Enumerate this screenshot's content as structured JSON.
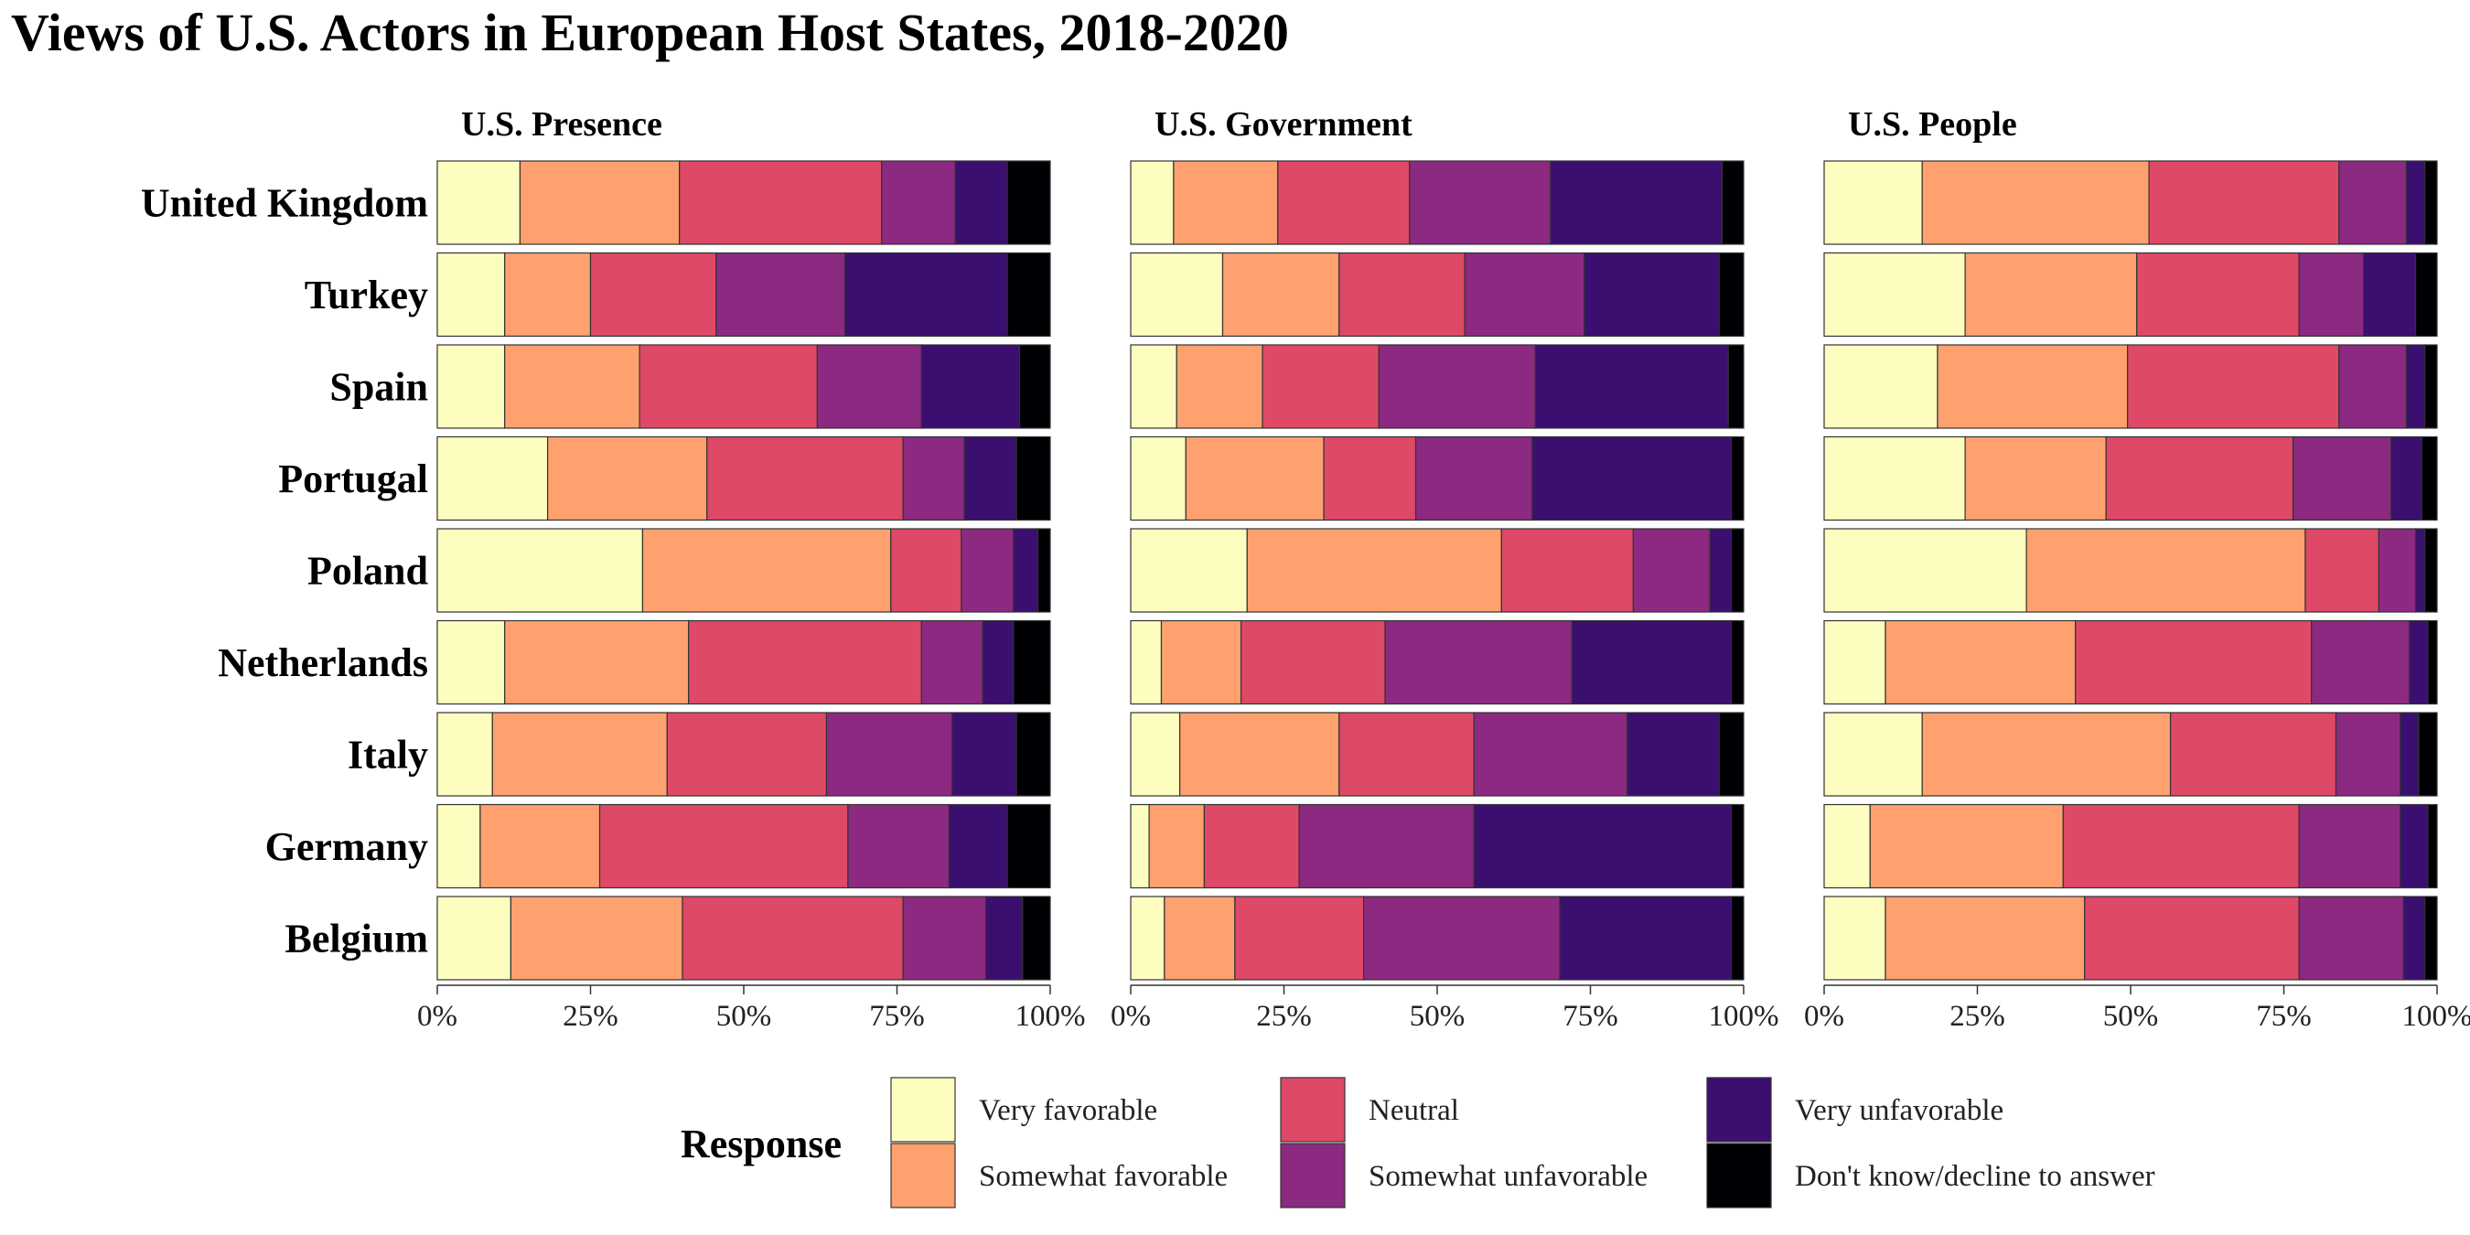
{
  "chart_data": {
    "type": "bar",
    "orientation": "horizontal",
    "stacked": true,
    "normalized": true,
    "title": "Views of U.S. Actors in European Host States, 2018-2020",
    "categories": [
      "United Kingdom",
      "Turkey",
      "Spain",
      "Portugal",
      "Poland",
      "Netherlands",
      "Italy",
      "Germany",
      "Belgium"
    ],
    "x_ticks": [
      "0%",
      "25%",
      "50%",
      "75%",
      "100%"
    ],
    "xlim": [
      0,
      1
    ],
    "grid": false,
    "legend": {
      "title": "Response",
      "position": "bottom",
      "entries": [
        {
          "name": "Very favorable",
          "color": "#FCFDBF"
        },
        {
          "name": "Somewhat favorable",
          "color": "#FEA16E"
        },
        {
          "name": "Neutral",
          "color": "#DE4968"
        },
        {
          "name": "Somewhat unfavorable",
          "color": "#8C2981"
        },
        {
          "name": "Very unfavorable",
          "color": "#3B0F70"
        },
        {
          "name": "Don't know/decline to answer",
          "color": "#000004"
        }
      ]
    },
    "panels": [
      {
        "title": "U.S. Presence",
        "rows": [
          [
            0.135,
            0.26,
            0.33,
            0.12,
            0.085,
            0.07
          ],
          [
            0.11,
            0.14,
            0.205,
            0.21,
            0.265,
            0.07
          ],
          [
            0.11,
            0.22,
            0.29,
            0.17,
            0.16,
            0.05
          ],
          [
            0.18,
            0.26,
            0.32,
            0.1,
            0.085,
            0.055
          ],
          [
            0.335,
            0.405,
            0.115,
            0.085,
            0.04,
            0.02
          ],
          [
            0.11,
            0.3,
            0.38,
            0.1,
            0.05,
            0.06
          ],
          [
            0.09,
            0.285,
            0.26,
            0.205,
            0.105,
            0.055
          ],
          [
            0.07,
            0.195,
            0.405,
            0.165,
            0.095,
            0.07
          ],
          [
            0.12,
            0.28,
            0.36,
            0.135,
            0.06,
            0.045
          ]
        ]
      },
      {
        "title": "U.S. Government",
        "rows": [
          [
            0.07,
            0.17,
            0.215,
            0.23,
            0.28,
            0.035
          ],
          [
            0.15,
            0.19,
            0.205,
            0.195,
            0.22,
            0.04
          ],
          [
            0.075,
            0.14,
            0.19,
            0.255,
            0.315,
            0.025
          ],
          [
            0.09,
            0.225,
            0.15,
            0.19,
            0.325,
            0.02
          ],
          [
            0.19,
            0.415,
            0.215,
            0.125,
            0.035,
            0.02
          ],
          [
            0.05,
            0.13,
            0.235,
            0.305,
            0.26,
            0.02
          ],
          [
            0.08,
            0.26,
            0.22,
            0.25,
            0.15,
            0.04
          ],
          [
            0.03,
            0.09,
            0.155,
            0.285,
            0.42,
            0.02
          ],
          [
            0.055,
            0.115,
            0.21,
            0.32,
            0.28,
            0.02
          ]
        ]
      },
      {
        "title": "U.S. People",
        "rows": [
          [
            0.16,
            0.37,
            0.31,
            0.11,
            0.03,
            0.02
          ],
          [
            0.23,
            0.28,
            0.265,
            0.105,
            0.085,
            0.035
          ],
          [
            0.185,
            0.31,
            0.345,
            0.11,
            0.03,
            0.02
          ],
          [
            0.23,
            0.23,
            0.305,
            0.16,
            0.05,
            0.025
          ],
          [
            0.33,
            0.455,
            0.12,
            0.06,
            0.015,
            0.02
          ],
          [
            0.1,
            0.31,
            0.385,
            0.16,
            0.03,
            0.015
          ],
          [
            0.16,
            0.405,
            0.27,
            0.105,
            0.03,
            0.03
          ],
          [
            0.075,
            0.315,
            0.385,
            0.165,
            0.045,
            0.015
          ],
          [
            0.1,
            0.325,
            0.35,
            0.17,
            0.035,
            0.02
          ]
        ]
      }
    ]
  }
}
